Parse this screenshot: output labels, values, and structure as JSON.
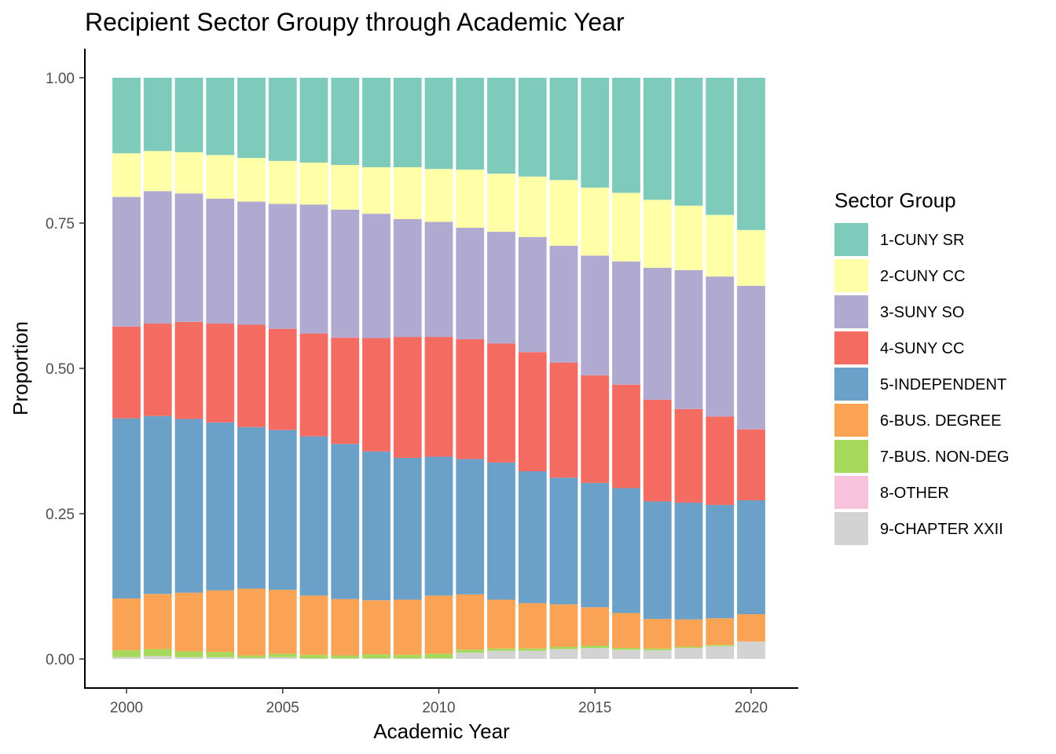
{
  "chart_data": {
    "type": "bar",
    "stacked": true,
    "title": "Recipient Sector Groupy through Academic Year",
    "xlabel": "Academic Year",
    "ylabel": "Proportion",
    "ylim": [
      0,
      1
    ],
    "xlim": [
      1999.5,
      2020.5
    ],
    "x_ticks": [
      "2000",
      "2005",
      "2010",
      "2015",
      "2020"
    ],
    "y_ticks": [
      "0.00",
      "0.25",
      "0.50",
      "0.75",
      "1.00"
    ],
    "grid": false,
    "legend_position": "right",
    "legend_title": "Sector Group",
    "x": [
      2000,
      2001,
      2002,
      2003,
      2004,
      2005,
      2006,
      2007,
      2008,
      2009,
      2010,
      2011,
      2012,
      2013,
      2014,
      2015,
      2016,
      2017,
      2018,
      2019,
      2020
    ],
    "series": [
      {
        "name": "1-CUNY SR",
        "color": "#7fcbbb",
        "values": [
          0.13,
          0.126,
          0.128,
          0.133,
          0.138,
          0.143,
          0.146,
          0.15,
          0.154,
          0.154,
          0.157,
          0.158,
          0.165,
          0.17,
          0.176,
          0.189,
          0.198,
          0.21,
          0.22,
          0.236,
          0.262
        ]
      },
      {
        "name": "2-CUNY CC",
        "color": "#ffffa8",
        "values": [
          0.075,
          0.069,
          0.071,
          0.075,
          0.075,
          0.074,
          0.072,
          0.077,
          0.08,
          0.089,
          0.091,
          0.1,
          0.1,
          0.104,
          0.113,
          0.117,
          0.118,
          0.117,
          0.111,
          0.106,
          0.096
        ]
      },
      {
        "name": "3-SUNY SO",
        "color": "#b0aad1",
        "values": [
          0.223,
          0.228,
          0.221,
          0.215,
          0.212,
          0.215,
          0.222,
          0.22,
          0.214,
          0.203,
          0.198,
          0.192,
          0.192,
          0.198,
          0.201,
          0.206,
          0.212,
          0.227,
          0.239,
          0.241,
          0.247
        ]
      },
      {
        "name": "4-SUNY CC",
        "color": "#f46b62",
        "values": [
          0.158,
          0.159,
          0.167,
          0.17,
          0.176,
          0.174,
          0.177,
          0.183,
          0.195,
          0.208,
          0.206,
          0.206,
          0.205,
          0.205,
          0.198,
          0.185,
          0.178,
          0.175,
          0.161,
          0.152,
          0.122
        ]
      },
      {
        "name": "5-INDEPENDENT",
        "color": "#6ba1c8",
        "values": [
          0.31,
          0.306,
          0.299,
          0.289,
          0.278,
          0.275,
          0.274,
          0.267,
          0.256,
          0.244,
          0.239,
          0.233,
          0.236,
          0.227,
          0.218,
          0.214,
          0.215,
          0.202,
          0.201,
          0.195,
          0.196
        ]
      },
      {
        "name": "6-BUS. DEGREE",
        "color": "#fba354",
        "values": [
          0.089,
          0.095,
          0.101,
          0.106,
          0.115,
          0.11,
          0.102,
          0.097,
          0.093,
          0.095,
          0.1,
          0.095,
          0.084,
          0.078,
          0.073,
          0.066,
          0.06,
          0.051,
          0.047,
          0.046,
          0.047
        ]
      },
      {
        "name": "7-BUS. NON-DEG",
        "color": "#a6d95b",
        "values": [
          0.012,
          0.012,
          0.01,
          0.009,
          0.004,
          0.006,
          0.006,
          0.005,
          0.007,
          0.006,
          0.008,
          0.005,
          0.004,
          0.004,
          0.004,
          0.004,
          0.003,
          0.003,
          0.002,
          0.002,
          0.0
        ]
      },
      {
        "name": "8-OTHER",
        "color": "#f8c2dd",
        "values": [
          0.0,
          0.0,
          0.0,
          0.0,
          0.0,
          0.0,
          0.0,
          0.0,
          0.0,
          0.0,
          0.0,
          0.0,
          0.0,
          0.0,
          0.0,
          0.0,
          0.0,
          0.0,
          0.0,
          0.0,
          0.0
        ]
      },
      {
        "name": "9-CHAPTER XXII",
        "color": "#d3d3d3",
        "values": [
          0.003,
          0.005,
          0.003,
          0.003,
          0.002,
          0.003,
          0.001,
          0.001,
          0.001,
          0.001,
          0.001,
          0.011,
          0.014,
          0.014,
          0.017,
          0.019,
          0.016,
          0.015,
          0.019,
          0.022,
          0.03
        ]
      }
    ]
  }
}
